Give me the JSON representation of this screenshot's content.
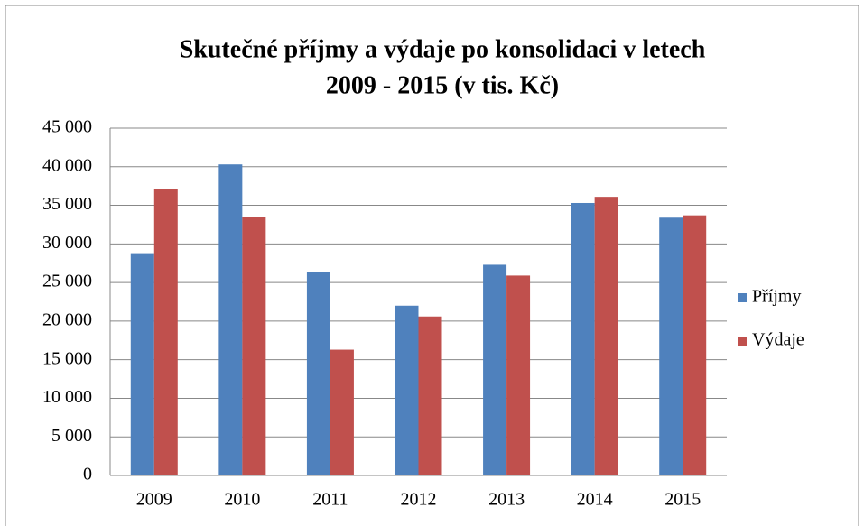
{
  "chart_data": {
    "type": "bar",
    "title_lines": [
      "Skutečné příjmy a výdaje po konsolidaci v letech",
      "2009 - 2015 (v tis. Kč)"
    ],
    "categories": [
      "2009",
      "2010",
      "2011",
      "2012",
      "2013",
      "2014",
      "2015"
    ],
    "series": [
      {
        "name": "Příjmy",
        "color": "#4f81bd",
        "values": [
          28800,
          40300,
          26300,
          22000,
          27300,
          35300,
          33400
        ]
      },
      {
        "name": "Výdaje",
        "color": "#c0504d",
        "values": [
          37100,
          33500,
          16300,
          20600,
          25900,
          36100,
          33700
        ]
      }
    ],
    "ylim": [
      0,
      45000
    ],
    "yticks": [
      0,
      {
        "value": 5000,
        "label": "5 000"
      },
      {
        "value": 10000,
        "label": "10 000"
      },
      {
        "value": 15000,
        "label": "15 000"
      },
      {
        "value": 20000,
        "label": "20 000"
      },
      {
        "value": 25000,
        "label": "25 000"
      },
      {
        "value": 30000,
        "label": "30 000"
      },
      {
        "value": 35000,
        "label": "35 000"
      },
      {
        "value": 40000,
        "label": "40 000"
      },
      {
        "value": 45000,
        "label": "45 000"
      }
    ],
    "grid": true,
    "legend": "right"
  }
}
